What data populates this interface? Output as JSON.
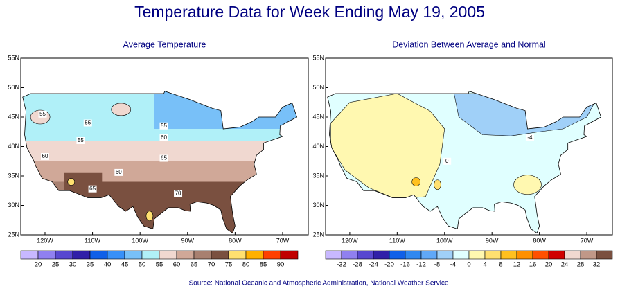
{
  "title": "Temperature Data for Week Ending May 19, 2005",
  "maps": [
    {
      "title": "Average Temperature",
      "lat_labels": [
        "55N",
        "50N",
        "45N",
        "40N",
        "35N",
        "30N",
        "25N"
      ],
      "lon_labels": [
        "120W",
        "110W",
        "100W",
        "90W",
        "80W",
        "70W"
      ],
      "contour_labels": [
        55,
        55,
        55,
        55,
        60,
        60,
        60,
        65,
        65,
        70
      ],
      "legend": {
        "colors": [
          "#c8b8ff",
          "#9080f0",
          "#5848d0",
          "#3020a8",
          "#1060e8",
          "#3890f8",
          "#78c0f8",
          "#b0f0f8",
          "#f0d8d0",
          "#d0a898",
          "#a88070",
          "#7a5040",
          "#ffe070",
          "#ffb000",
          "#ff4000",
          "#c00000"
        ],
        "labels": [
          20,
          25,
          30,
          35,
          40,
          45,
          50,
          55,
          60,
          65,
          70,
          75,
          80,
          85,
          90
        ]
      }
    },
    {
      "title": "Deviation Between Average and Normal",
      "lat_labels": [
        "55N",
        "50N",
        "45N",
        "40N",
        "35N",
        "30N",
        "25N"
      ],
      "lon_labels": [
        "120W",
        "110W",
        "100W",
        "90W",
        "80W",
        "70W"
      ],
      "contour_labels": [
        0,
        -4
      ],
      "legend": {
        "colors": [
          "#c8b8ff",
          "#9080f0",
          "#5848d0",
          "#3020a8",
          "#1060e8",
          "#3088f0",
          "#60a8f8",
          "#a0d0f8",
          "#e0ffff",
          "#fff8b0",
          "#ffe070",
          "#ffc020",
          "#ff9000",
          "#ff5000",
          "#d00000",
          "#f0d8d0",
          "#c09888",
          "#7a5040"
        ],
        "labels": [
          -32,
          -28,
          -24,
          -20,
          -16,
          -12,
          -8,
          -4,
          0,
          4,
          8,
          12,
          16,
          20,
          24,
          28,
          32
        ]
      }
    }
  ],
  "source": "Source:  National Oceanic and Atmospheric Administration, National Weather Service"
}
